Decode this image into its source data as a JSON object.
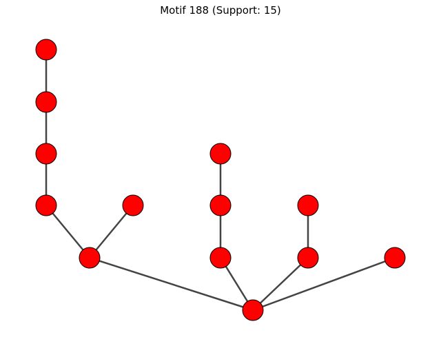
{
  "title": "Motif 188 (Support: 15)",
  "style": {
    "node_fill": "#ff0000",
    "node_stroke": "#000000",
    "edge_color": "#444444"
  },
  "graph": {
    "nodes": [
      "n1",
      "n2",
      "n3",
      "n4",
      "n5",
      "n6",
      "n7",
      "n8",
      "n9",
      "n10",
      "n11",
      "n12",
      "n13"
    ],
    "edges": [
      [
        "n1",
        "n2"
      ],
      [
        "n2",
        "n3"
      ],
      [
        "n3",
        "n4"
      ],
      [
        "n4",
        "n5"
      ],
      [
        "n6",
        "n5"
      ],
      [
        "n5",
        "n13"
      ],
      [
        "n7",
        "n8"
      ],
      [
        "n8",
        "n9"
      ],
      [
        "n9",
        "n13"
      ],
      [
        "n10",
        "n11"
      ],
      [
        "n11",
        "n13"
      ],
      [
        "n12",
        "n13"
      ]
    ]
  }
}
